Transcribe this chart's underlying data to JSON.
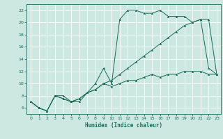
{
  "title": "",
  "xlabel": "Humidex (Indice chaleur)",
  "bg_color": "#cde8e0",
  "line_color": "#1a6b5a",
  "grid_color": "#b0d8ce",
  "xlim": [
    -0.5,
    23.5
  ],
  "ylim": [
    5.0,
    23.0
  ],
  "yticks": [
    6,
    8,
    10,
    12,
    14,
    16,
    18,
    20,
    22
  ],
  "xticks": [
    0,
    1,
    2,
    3,
    4,
    5,
    6,
    7,
    8,
    9,
    10,
    11,
    12,
    13,
    14,
    15,
    16,
    17,
    18,
    19,
    20,
    21,
    22,
    23
  ],
  "series": [
    {
      "x": [
        0,
        1,
        2,
        3,
        4,
        5,
        6,
        7,
        8,
        9,
        10,
        11,
        12,
        13,
        14,
        15,
        16,
        17,
        18,
        19,
        20,
        21,
        22,
        23
      ],
      "y": [
        7,
        6,
        5.5,
        8,
        8,
        7,
        7,
        8.5,
        10,
        12.5,
        10.0,
        20.5,
        22,
        22,
        21.5,
        21.5,
        22,
        21,
        21,
        21,
        20,
        20.5,
        12.5,
        11.5
      ]
    },
    {
      "x": [
        0,
        1,
        2,
        3,
        4,
        5,
        6,
        7,
        8,
        9,
        10,
        11,
        12,
        13,
        14,
        15,
        16,
        17,
        18,
        19,
        20,
        21,
        22,
        23
      ],
      "y": [
        7,
        6,
        5.5,
        8,
        7.5,
        7,
        7.5,
        8.5,
        9,
        10,
        10.5,
        11.5,
        12.5,
        13.5,
        14.5,
        15.5,
        16.5,
        17.5,
        18.5,
        19.5,
        20.0,
        20.5,
        20.5,
        11.5
      ]
    },
    {
      "x": [
        0,
        1,
        2,
        3,
        4,
        5,
        6,
        7,
        8,
        9,
        10,
        11,
        12,
        13,
        14,
        15,
        16,
        17,
        18,
        19,
        20,
        21,
        22,
        23
      ],
      "y": [
        7,
        6,
        5.5,
        8,
        7.5,
        7,
        7.5,
        8.5,
        9,
        10,
        9.5,
        10.0,
        10.5,
        10.5,
        11.0,
        11.5,
        11.0,
        11.5,
        11.5,
        12.0,
        12.0,
        12.0,
        11.5,
        11.5
      ]
    }
  ]
}
